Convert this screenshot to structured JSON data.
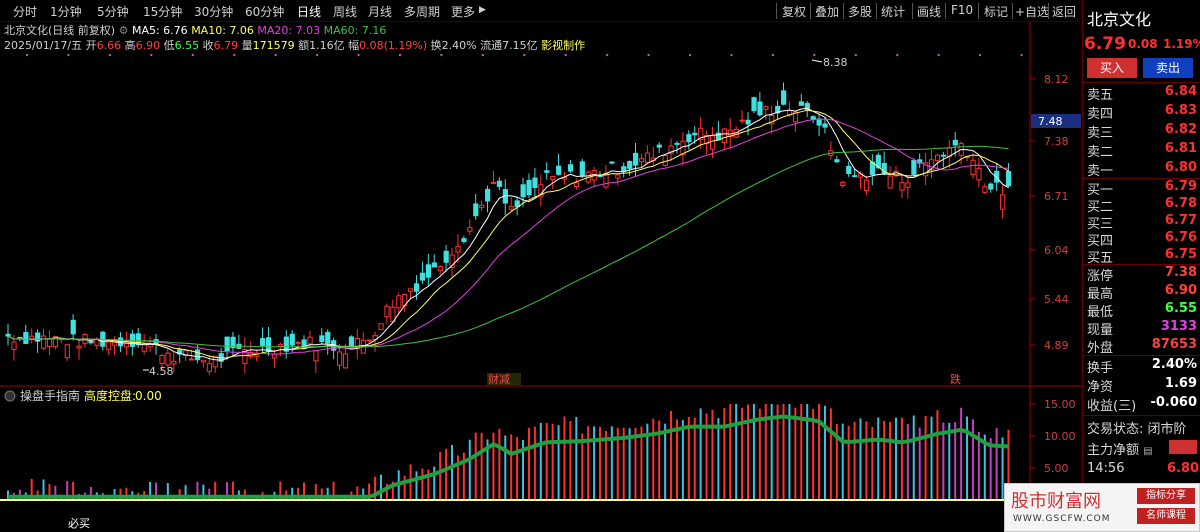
{
  "toolbar": {
    "periods": [
      "分时",
      "1分钟",
      "5分钟",
      "15分钟",
      "30分钟",
      "60分钟",
      "日线",
      "周线",
      "月线",
      "多周期",
      "更多"
    ],
    "more_arrow": "▶",
    "right": [
      "复权",
      "叠加",
      "多股",
      "统计",
      "画线",
      "F10",
      "标记",
      "+自选",
      "返回"
    ]
  },
  "stock": {
    "title": "北京文化(日线 前复权)",
    "ma5": "MA5: 6.76",
    "ma10": "MA10: 7.06",
    "ma20": "MA20: 7.03",
    "ma60": "MA60: 7.16",
    "date": "2025/01/17/五",
    "open_lbl": "开",
    "open": "6.66",
    "high_lbl": "高",
    "high": "6.90",
    "low_lbl": "低",
    "low": "6.55",
    "close_lbl": "收",
    "close": "6.79",
    "vol_lbl": "量",
    "vol": "171579",
    "amt_lbl": "额",
    "amt": "1.16亿",
    "chg_lbl": "幅",
    "chg": "0.08(1.19%)",
    "turnover": "换2.40%",
    "float": "流通7.15亿",
    "film": "影视制作"
  },
  "main_axis": [
    "8.12",
    "7.38",
    "6.71",
    "6.04",
    "5.44",
    "4.89"
  ],
  "current_price_tag": "7.48",
  "annotations": {
    "high": "8.38",
    "low": "4.58",
    "event1": "财减",
    "event2": "跌"
  },
  "indicator": {
    "name": "操盘手指南",
    "param_lbl": "高度控盘:",
    "param_val": "0.00",
    "axis": [
      "15.00",
      "10.00",
      "5.00"
    ],
    "bottom_label": "必买"
  },
  "panel": {
    "name": "北京文化",
    "price": "6.79",
    "chg": "0.08",
    "pct": "1.19%",
    "buy_btn": "买入",
    "sell_btn": "卖出",
    "asks": [
      {
        "label": "卖五",
        "price": "6.84"
      },
      {
        "label": "卖四",
        "price": "6.83"
      },
      {
        "label": "卖三",
        "price": "6.82"
      },
      {
        "label": "卖二",
        "price": "6.81"
      },
      {
        "label": "卖一",
        "price": "6.80"
      }
    ],
    "bids": [
      {
        "label": "买一",
        "price": "6.79"
      },
      {
        "label": "买二",
        "price": "6.78"
      },
      {
        "label": "买三",
        "price": "6.77"
      },
      {
        "label": "买四",
        "price": "6.76"
      },
      {
        "label": "买五",
        "price": "6.75"
      }
    ],
    "stats": [
      {
        "label": "涨停",
        "value": "7.38",
        "color": "#ff4040"
      },
      {
        "label": "最高",
        "value": "6.90",
        "color": "#ff4040"
      },
      {
        "label": "最低",
        "value": "6.55",
        "color": "#40ff40"
      },
      {
        "label": "现量",
        "value": "3133",
        "color": "#e040e0"
      },
      {
        "label": "外盘",
        "value": "87653",
        "color": "#ff4040"
      }
    ],
    "stats2": [
      {
        "label": "换手",
        "value": "2.40%"
      },
      {
        "label": "净资",
        "value": "1.69"
      },
      {
        "label": "收益(三)",
        "value": "-0.060"
      }
    ],
    "trade_status": "交易状态: 闭市阶",
    "main_flow": "主力净额",
    "time": "14:56",
    "last": "6.80"
  },
  "watermark": {
    "brand": "股市财富网",
    "url": "WWW.GSCFW.COM",
    "tag1": "指标分享",
    "tag2": "名师课程"
  },
  "colors": {
    "up": "#ff3030",
    "down": "#40e0e0",
    "ma5": "#ffffff",
    "ma10": "#ffff60",
    "ma20": "#e040e0",
    "ma60": "#40c040"
  }
}
